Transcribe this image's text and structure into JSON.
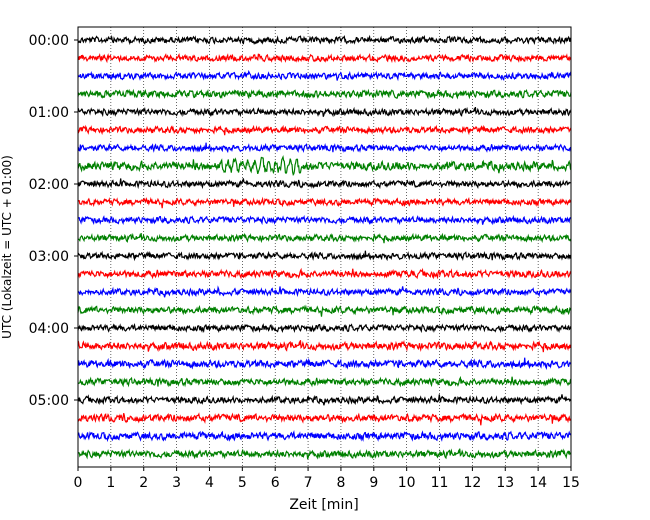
{
  "chart_data": {
    "type": "line",
    "title": "",
    "xlabel": "Zeit  [min]",
    "ylabel": "UTC (Lokalzeit = UTC + 01:00)",
    "xlim": [
      0,
      15
    ],
    "x_ticks": [
      0,
      1,
      2,
      3,
      4,
      5,
      6,
      7,
      8,
      9,
      10,
      11,
      12,
      13,
      14,
      15
    ],
    "y_tick_labels": [
      "00:00",
      "01:00",
      "02:00",
      "03:00",
      "04:00",
      "05:00"
    ],
    "grid": "vertical dotted",
    "trace_interval_min": 15,
    "trace_colors": [
      "#000000",
      "#ff0000",
      "#0000ff",
      "#008000"
    ],
    "series": [
      {
        "start": "00:00",
        "color": "#000000",
        "amplitude": 0.22
      },
      {
        "start": "00:15",
        "color": "#ff0000",
        "amplitude": 0.22
      },
      {
        "start": "00:30",
        "color": "#0000ff",
        "amplitude": 0.22
      },
      {
        "start": "00:45",
        "color": "#008000",
        "amplitude": 0.24
      },
      {
        "start": "01:00",
        "color": "#000000",
        "amplitude": 0.22
      },
      {
        "start": "01:15",
        "color": "#ff0000",
        "amplitude": 0.22
      },
      {
        "start": "01:30",
        "color": "#0000ff",
        "amplitude": 0.22
      },
      {
        "start": "01:45",
        "color": "#008000",
        "amplitude": 0.3
      },
      {
        "start": "02:00",
        "color": "#000000",
        "amplitude": 0.22
      },
      {
        "start": "02:15",
        "color": "#ff0000",
        "amplitude": 0.22
      },
      {
        "start": "02:30",
        "color": "#0000ff",
        "amplitude": 0.22
      },
      {
        "start": "02:45",
        "color": "#008000",
        "amplitude": 0.22
      },
      {
        "start": "03:00",
        "color": "#000000",
        "amplitude": 0.22
      },
      {
        "start": "03:15",
        "color": "#ff0000",
        "amplitude": 0.24
      },
      {
        "start": "03:30",
        "color": "#0000ff",
        "amplitude": 0.22
      },
      {
        "start": "03:45",
        "color": "#008000",
        "amplitude": 0.24
      },
      {
        "start": "04:00",
        "color": "#000000",
        "amplitude": 0.22
      },
      {
        "start": "04:15",
        "color": "#ff0000",
        "amplitude": 0.26
      },
      {
        "start": "04:30",
        "color": "#0000ff",
        "amplitude": 0.26
      },
      {
        "start": "04:45",
        "color": "#008000",
        "amplitude": 0.24
      },
      {
        "start": "05:00",
        "color": "#000000",
        "amplitude": 0.22
      },
      {
        "start": "05:15",
        "color": "#ff0000",
        "amplitude": 0.26
      },
      {
        "start": "05:30",
        "color": "#0000ff",
        "amplitude": 0.26
      },
      {
        "start": "05:45",
        "color": "#008000",
        "amplitude": 0.24
      }
    ]
  }
}
